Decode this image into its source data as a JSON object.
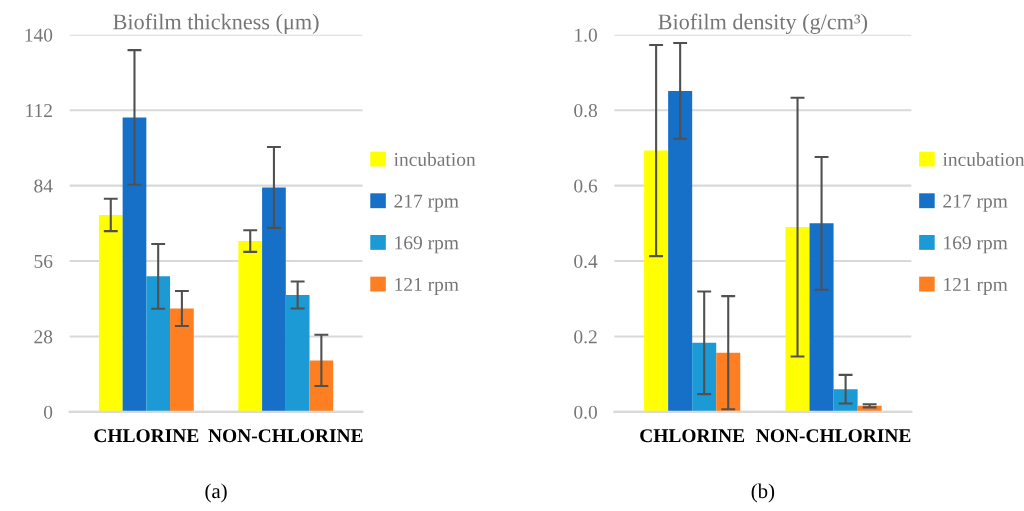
{
  "chart_data": [
    {
      "type": "bar",
      "title": "Biofilm thickness (μm)",
      "categories": [
        "CHLORINE",
        "NON-CHLORINE"
      ],
      "ylim": [
        0,
        140
      ],
      "yticks": [
        0,
        28,
        56,
        84,
        112,
        140
      ],
      "grid": "y",
      "legend": "right",
      "annotations": [
        "(a)"
      ],
      "series": [
        {
          "name": "incubation",
          "color": "#ffff00",
          "values": [
            73.1,
            63.4
          ],
          "errors": [
            6,
            4
          ]
        },
        {
          "name": "217 rpm",
          "color": "#1770c8",
          "values": [
            109.3,
            83.3
          ],
          "errors": [
            25,
            15
          ]
        },
        {
          "name": "169 rpm",
          "color": "#1b9ad6",
          "values": [
            50.3,
            43.4
          ],
          "errors": [
            12,
            5
          ]
        },
        {
          "name": "121 rpm",
          "color": "#fe7f22",
          "values": [
            38.4,
            19.1
          ],
          "errors": [
            6.5,
            9.5
          ]
        }
      ]
    },
    {
      "type": "bar",
      "title": "Biofilm density (g/cm³)",
      "categories": [
        "CHLORINE",
        "NON-CHLORINE"
      ],
      "ylim": [
        0,
        1.0
      ],
      "yticks": [
        {
          "value": 0,
          "label": "0.0"
        },
        0.2,
        0.4,
        0.6,
        0.8,
        {
          "value": 1.0,
          "label": "1.0"
        }
      ],
      "grid": "y",
      "legend": "right",
      "annotations": [
        "(b)"
      ],
      "series": [
        {
          "name": "incubation",
          "color": "#ffff00",
          "values": [
            0.693,
            0.49
          ],
          "errors": [
            0.28,
            0.343
          ]
        },
        {
          "name": "217 rpm",
          "color": "#1770c8",
          "values": [
            0.851,
            0.5
          ],
          "errors": [
            0.127,
            0.176
          ]
        },
        {
          "name": "169 rpm",
          "color": "#1b9ad6",
          "values": [
            0.183,
            0.06
          ],
          "errors": [
            0.136,
            0.038
          ]
        },
        {
          "name": "121 rpm",
          "color": "#fe7f22",
          "values": [
            0.157,
            0.016
          ],
          "errors": [
            0.15,
            0.004
          ]
        }
      ]
    }
  ]
}
